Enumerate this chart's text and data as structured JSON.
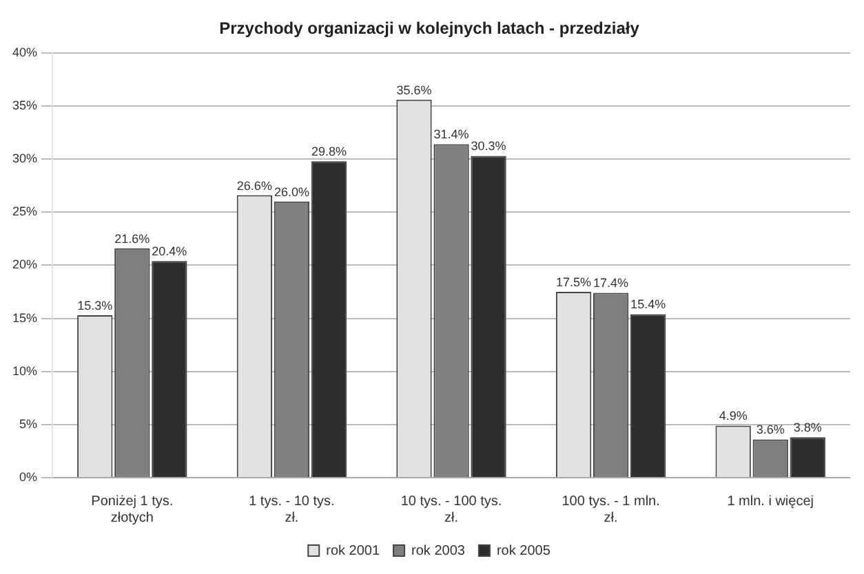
{
  "chart_data": {
    "type": "bar",
    "title": "Przychody organizacji w kolejnych latach - przedziały",
    "categories": [
      "Poniżej 1 tys. złotych",
      "1 tys. - 10 tys. zł.",
      "10 tys. - 100 tys. zł.",
      "100 tys. - 1 mln. zł.",
      "1 mln. i więcej"
    ],
    "series": [
      {
        "name": "rok 2001",
        "color": "#e2e2e2",
        "values": [
          15.3,
          26.6,
          35.6,
          17.5,
          4.9
        ],
        "value_labels": [
          "15.3%",
          "26.6%",
          "35.6%",
          "17.5%",
          "4.9%"
        ]
      },
      {
        "name": "rok 2003",
        "color": "#7f7f7f",
        "values": [
          21.6,
          26.0,
          31.4,
          17.4,
          3.6
        ],
        "value_labels": [
          "21.6%",
          "26.0%",
          "31.4%",
          "17.4%",
          "3.6%"
        ]
      },
      {
        "name": "rok 2005",
        "color": "#2e2e2e",
        "values": [
          20.4,
          29.8,
          30.3,
          15.4,
          3.8
        ],
        "value_labels": [
          "20.4%",
          "29.8%",
          "30.3%",
          "15.4%",
          "3.8%"
        ]
      }
    ],
    "ylim": [
      0,
      40
    ],
    "yticks": [
      {
        "value": 0,
        "label": "0%"
      },
      {
        "value": 5,
        "label": "5%"
      },
      {
        "value": 10,
        "label": "10%"
      },
      {
        "value": 15,
        "label": "15%"
      },
      {
        "value": 20,
        "label": "20%"
      },
      {
        "value": 25,
        "label": "25%"
      },
      {
        "value": 30,
        "label": "30%"
      },
      {
        "value": 35,
        "label": "35%"
      },
      {
        "value": 40,
        "label": "40%"
      }
    ],
    "grid": "y",
    "legend": "bottom"
  }
}
